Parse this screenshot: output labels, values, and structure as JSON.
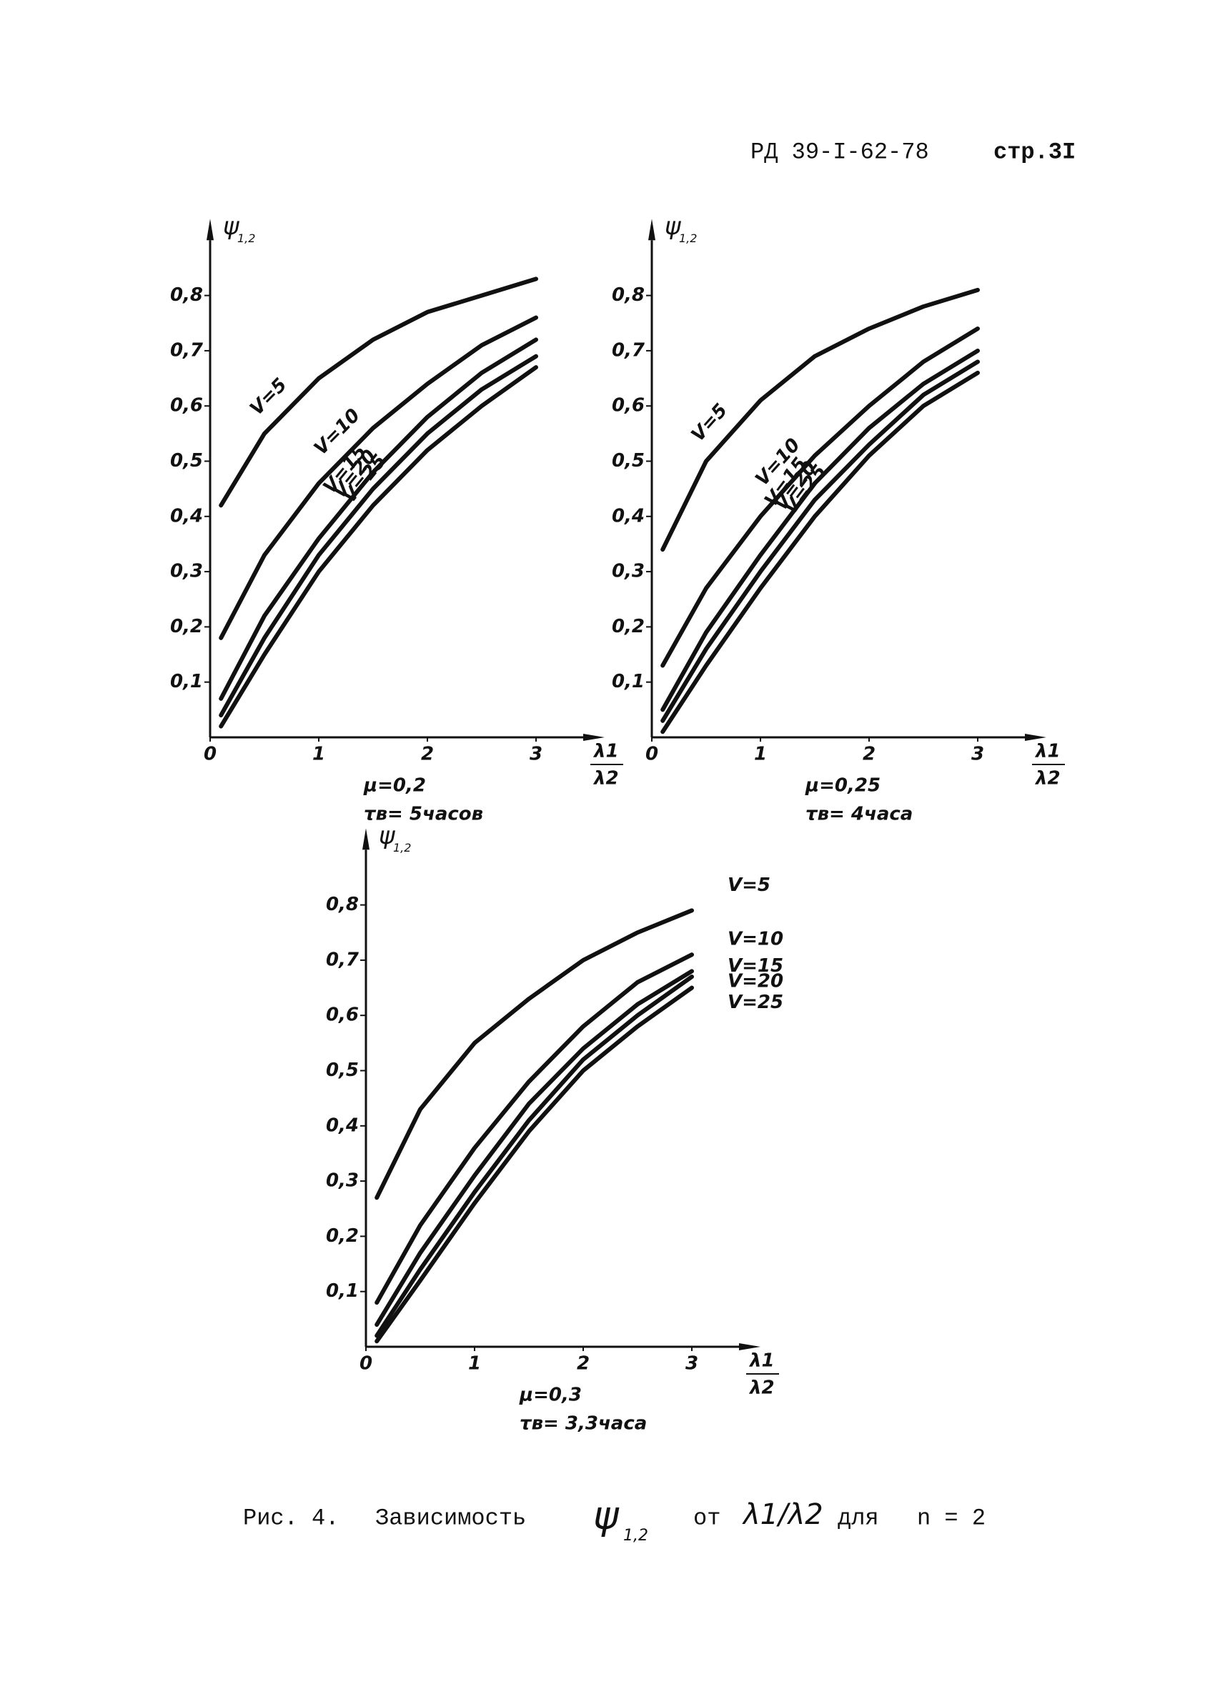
{
  "header": {
    "doc": "РД 39-I-62-78",
    "page": "стр.3I"
  },
  "chart_data": [
    {
      "type": "line",
      "ylabel": "ψ",
      "ylabel_sub": "1,2",
      "xlabel_num": "λ1",
      "xlabel_den": "λ2",
      "subtitle": [
        "μ=0,2",
        "τв= 5часов"
      ],
      "label_position": "curve",
      "color": "#111111",
      "xlim": [
        0,
        3.5
      ],
      "ylim": [
        0,
        0.9
      ],
      "xticks": [
        0,
        1,
        2,
        3
      ],
      "yticks": [
        {
          "value": 0.1,
          "label": "0,1"
        },
        {
          "value": 0.2,
          "label": "0,2"
        },
        {
          "value": 0.3,
          "label": "0,3"
        },
        {
          "value": 0.4,
          "label": "0,4"
        },
        {
          "value": 0.5,
          "label": "0,5"
        },
        {
          "value": 0.6,
          "label": "0,6"
        },
        {
          "value": 0.7,
          "label": "0,7"
        },
        {
          "value": 0.8,
          "label": "0,8"
        }
      ],
      "x": [
        0.1,
        0.5,
        1,
        1.5,
        2,
        2.5,
        3
      ],
      "series": [
        {
          "name": "V=5",
          "values": [
            0.42,
            0.55,
            0.65,
            0.72,
            0.77,
            0.8,
            0.83
          ]
        },
        {
          "name": "V=10",
          "values": [
            0.18,
            0.33,
            0.46,
            0.56,
            0.64,
            0.71,
            0.76
          ]
        },
        {
          "name": "V=15",
          "values": [
            0.07,
            0.22,
            0.36,
            0.48,
            0.58,
            0.66,
            0.72
          ]
        },
        {
          "name": "V=20",
          "values": [
            0.04,
            0.18,
            0.33,
            0.45,
            0.55,
            0.63,
            0.69
          ]
        },
        {
          "name": "V=25",
          "values": [
            0.02,
            0.15,
            0.3,
            0.42,
            0.52,
            0.6,
            0.67
          ]
        }
      ]
    },
    {
      "type": "line",
      "ylabel": "ψ",
      "ylabel_sub": "1,2",
      "xlabel_num": "λ1",
      "xlabel_den": "λ2",
      "subtitle": [
        "μ=0,25",
        "τв= 4часа"
      ],
      "label_position": "curve",
      "color": "#111111",
      "xlim": [
        0,
        3.5
      ],
      "ylim": [
        0,
        0.9
      ],
      "xticks": [
        0,
        1,
        2,
        3
      ],
      "yticks": [
        {
          "value": 0.1,
          "label": "0,1"
        },
        {
          "value": 0.2,
          "label": "0,2"
        },
        {
          "value": 0.3,
          "label": "0,3"
        },
        {
          "value": 0.4,
          "label": "0,4"
        },
        {
          "value": 0.5,
          "label": "0,5"
        },
        {
          "value": 0.6,
          "label": "0,6"
        },
        {
          "value": 0.7,
          "label": "0,7"
        },
        {
          "value": 0.8,
          "label": "0,8"
        }
      ],
      "x": [
        0.1,
        0.5,
        1,
        1.5,
        2,
        2.5,
        3
      ],
      "series": [
        {
          "name": "V=5",
          "values": [
            0.34,
            0.5,
            0.61,
            0.69,
            0.74,
            0.78,
            0.81
          ]
        },
        {
          "name": "V=10",
          "values": [
            0.13,
            0.27,
            0.4,
            0.51,
            0.6,
            0.68,
            0.74
          ]
        },
        {
          "name": "V=15",
          "values": [
            0.05,
            0.19,
            0.33,
            0.46,
            0.56,
            0.64,
            0.7
          ]
        },
        {
          "name": "V=20",
          "values": [
            0.03,
            0.16,
            0.3,
            0.43,
            0.53,
            0.62,
            0.68
          ]
        },
        {
          "name": "V=25",
          "values": [
            0.01,
            0.13,
            0.27,
            0.4,
            0.51,
            0.6,
            0.66
          ]
        }
      ]
    },
    {
      "type": "line",
      "ylabel": "ψ",
      "ylabel_sub": "1,2",
      "xlabel_num": "λ1",
      "xlabel_den": "λ2",
      "subtitle": [
        "μ=0,3",
        "τв= 3,3часа"
      ],
      "label_position": "end",
      "color": "#111111",
      "xlim": [
        0,
        3.5
      ],
      "ylim": [
        0,
        0.9
      ],
      "xticks": [
        0,
        1,
        2,
        3
      ],
      "yticks": [
        {
          "value": 0.1,
          "label": "0,1"
        },
        {
          "value": 0.2,
          "label": "0,2"
        },
        {
          "value": 0.3,
          "label": "0,3"
        },
        {
          "value": 0.4,
          "label": "0,4"
        },
        {
          "value": 0.5,
          "label": "0,5"
        },
        {
          "value": 0.6,
          "label": "0,6"
        },
        {
          "value": 0.7,
          "label": "0,7"
        },
        {
          "value": 0.8,
          "label": "0,8"
        }
      ],
      "x": [
        0.1,
        0.5,
        1,
        1.5,
        2,
        2.5,
        3
      ],
      "series": [
        {
          "name": "V=5",
          "values": [
            0.27,
            0.43,
            0.55,
            0.63,
            0.7,
            0.75,
            0.79
          ]
        },
        {
          "name": "V=10",
          "values": [
            0.08,
            0.22,
            0.36,
            0.48,
            0.58,
            0.66,
            0.71
          ]
        },
        {
          "name": "V=15",
          "values": [
            0.04,
            0.17,
            0.31,
            0.44,
            0.54,
            0.62,
            0.68
          ]
        },
        {
          "name": "V=20",
          "values": [
            0.02,
            0.14,
            0.28,
            0.41,
            0.52,
            0.6,
            0.67
          ]
        },
        {
          "name": "V=25",
          "values": [
            0.01,
            0.12,
            0.26,
            0.39,
            0.5,
            0.58,
            0.65
          ]
        }
      ]
    }
  ],
  "caption": {
    "label": "Рис. 4.",
    "text": "Зависимость",
    "symbol": "ψ",
    "symbol_sub": "1,2",
    "from": "от",
    "ratio": "λ1/λ2",
    "for": "для",
    "param": "n = 2"
  }
}
